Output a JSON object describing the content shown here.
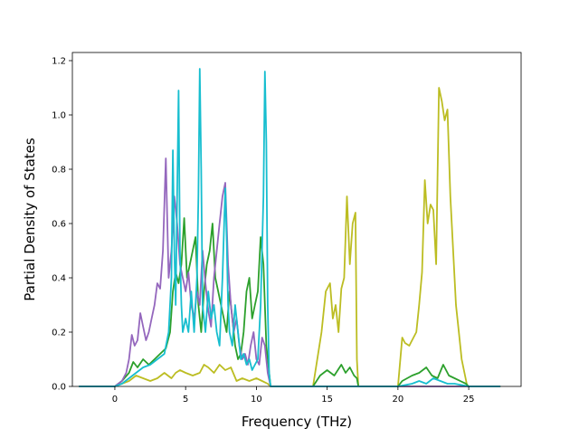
{
  "chart_data": {
    "type": "line",
    "title": "",
    "xlabel": "Frequency (THz)",
    "ylabel": "Partial Density of States",
    "xlim": [
      -3,
      28.7
    ],
    "ylim": [
      0,
      1.23
    ],
    "grid": false,
    "x_ticks": [
      0,
      5,
      10,
      15,
      20,
      25
    ],
    "y_ticks": [
      0.0,
      0.2,
      0.4,
      0.6,
      0.8,
      1.0,
      1.2
    ],
    "colors": {
      "purple": "#9467bd",
      "green": "#2ca02c",
      "olive": "#bcbd22",
      "cyan": "#17becf"
    },
    "series": [
      {
        "color": "#bcbd22",
        "x": [
          -2.5,
          -0.5,
          0,
          1,
          1.5,
          2,
          2.5,
          3,
          3.5,
          4,
          4.3,
          4.6,
          5,
          5.5,
          6,
          6.3,
          6.6,
          7,
          7.4,
          7.8,
          8.2,
          8.6,
          9,
          9.5,
          10,
          10.4,
          10.8,
          11,
          12,
          14,
          14.3,
          14.6,
          14.9,
          15.2,
          15.4,
          15.6,
          15.8,
          16.0,
          16.2,
          16.4,
          16.6,
          16.8,
          17.0,
          17.1,
          17.2,
          18,
          20,
          20.3,
          20.5,
          20.8,
          21.0,
          21.3,
          21.5,
          21.7,
          21.9,
          22.1,
          22.3,
          22.5,
          22.7,
          22.9,
          23.1,
          23.3,
          23.5,
          23.7,
          23.9,
          24.1,
          24.3,
          24.5,
          24.7,
          24.9,
          25.1,
          25.5,
          27.2
        ],
        "y": [
          0,
          0,
          0,
          0.02,
          0.04,
          0.03,
          0.02,
          0.03,
          0.05,
          0.03,
          0.05,
          0.06,
          0.05,
          0.04,
          0.05,
          0.08,
          0.07,
          0.05,
          0.08,
          0.06,
          0.07,
          0.02,
          0.03,
          0.02,
          0.03,
          0.02,
          0.01,
          0,
          0,
          0,
          0.1,
          0.2,
          0.35,
          0.38,
          0.25,
          0.3,
          0.2,
          0.36,
          0.4,
          0.7,
          0.45,
          0.6,
          0.64,
          0.1,
          0,
          0,
          0,
          0.18,
          0.16,
          0.15,
          0.17,
          0.2,
          0.3,
          0.42,
          0.76,
          0.6,
          0.67,
          0.65,
          0.45,
          1.1,
          1.05,
          0.98,
          1.02,
          0.7,
          0.5,
          0.3,
          0.2,
          0.1,
          0.05,
          0,
          0,
          0,
          0
        ]
      },
      {
        "color": "#2ca02c",
        "x": [
          -2.5,
          -0.5,
          0,
          0.5,
          1,
          1.3,
          1.6,
          2,
          2.4,
          2.8,
          3.2,
          3.6,
          3.9,
          4.1,
          4.3,
          4.5,
          4.7,
          4.9,
          5.1,
          5.3,
          5.5,
          5.7,
          5.9,
          6.1,
          6.3,
          6.5,
          6.7,
          6.9,
          7.1,
          7.3,
          7.5,
          7.7,
          7.9,
          8.1,
          8.3,
          8.5,
          8.7,
          8.9,
          9.1,
          9.3,
          9.5,
          9.7,
          9.9,
          10.1,
          10.3,
          10.5,
          10.7,
          10.9,
          11,
          12,
          14,
          14.5,
          15,
          15.5,
          16,
          16.3,
          16.6,
          16.9,
          17.1,
          17.2,
          18,
          20,
          20.3,
          21,
          21.5,
          22,
          22.4,
          22.8,
          23.2,
          23.6,
          24,
          24.4,
          24.8,
          25,
          27.2
        ],
        "y": [
          0,
          0,
          0,
          0.02,
          0.05,
          0.09,
          0.07,
          0.1,
          0.08,
          0.1,
          0.12,
          0.14,
          0.2,
          0.35,
          0.42,
          0.38,
          0.45,
          0.62,
          0.4,
          0.45,
          0.5,
          0.55,
          0.3,
          0.2,
          0.35,
          0.45,
          0.5,
          0.6,
          0.4,
          0.35,
          0.3,
          0.25,
          0.2,
          0.35,
          0.25,
          0.15,
          0.1,
          0.12,
          0.2,
          0.35,
          0.4,
          0.25,
          0.3,
          0.35,
          0.55,
          0.45,
          0.15,
          0.05,
          0,
          0,
          0,
          0.04,
          0.06,
          0.04,
          0.08,
          0.05,
          0.07,
          0.04,
          0.03,
          0,
          0,
          0,
          0.02,
          0.04,
          0.05,
          0.07,
          0.04,
          0.03,
          0.08,
          0.04,
          0.03,
          0.02,
          0.01,
          0,
          0
        ]
      },
      {
        "color": "#9467bd",
        "x": [
          -2.5,
          -0.5,
          0,
          0.5,
          0.8,
          1,
          1.2,
          1.4,
          1.6,
          1.8,
          2.0,
          2.2,
          2.4,
          2.6,
          2.8,
          3.0,
          3.2,
          3.4,
          3.6,
          3.8,
          4.0,
          4.2,
          4.4,
          4.6,
          4.8,
          5.0,
          5.2,
          5.4,
          5.6,
          5.8,
          6.0,
          6.2,
          6.4,
          6.6,
          6.8,
          7.0,
          7.2,
          7.4,
          7.6,
          7.8,
          8.0,
          8.2,
          8.4,
          8.6,
          8.8,
          9.0,
          9.2,
          9.4,
          9.6,
          9.8,
          10.0,
          10.2,
          10.4,
          10.6,
          10.8,
          11,
          14,
          15,
          17,
          20,
          25,
          27.2
        ],
        "y": [
          0,
          0,
          0,
          0.02,
          0.05,
          0.1,
          0.19,
          0.15,
          0.17,
          0.27,
          0.22,
          0.17,
          0.2,
          0.25,
          0.3,
          0.38,
          0.36,
          0.5,
          0.84,
          0.4,
          0.5,
          0.7,
          0.6,
          0.45,
          0.4,
          0.35,
          0.42,
          0.3,
          0.25,
          0.35,
          0.3,
          0.5,
          0.38,
          0.28,
          0.22,
          0.4,
          0.5,
          0.6,
          0.7,
          0.75,
          0.45,
          0.3,
          0.2,
          0.25,
          0.15,
          0.1,
          0.12,
          0.08,
          0.15,
          0.2,
          0.1,
          0.08,
          0.18,
          0.15,
          0.05,
          0,
          0,
          0,
          0,
          0,
          0,
          0
        ]
      },
      {
        "color": "#17becf",
        "x": [
          -2.5,
          -0.5,
          0,
          0.5,
          1,
          1.5,
          2,
          2.5,
          3,
          3.5,
          3.8,
          4.0,
          4.1,
          4.2,
          4.3,
          4.4,
          4.5,
          4.6,
          4.7,
          4.8,
          5.0,
          5.2,
          5.4,
          5.6,
          5.8,
          5.9,
          6.0,
          6.1,
          6.2,
          6.4,
          6.6,
          6.8,
          7.0,
          7.2,
          7.4,
          7.6,
          7.8,
          7.9,
          8.0,
          8.1,
          8.3,
          8.5,
          8.7,
          8.9,
          9.1,
          9.3,
          9.5,
          9.7,
          9.9,
          10.1,
          10.3,
          10.5,
          10.6,
          10.7,
          10.8,
          10.9,
          11,
          12,
          14,
          15,
          16,
          17,
          20,
          21,
          21.5,
          22,
          22.5,
          23,
          23.5,
          24,
          25,
          27.2
        ],
        "y": [
          0,
          0,
          0,
          0.01,
          0.03,
          0.05,
          0.07,
          0.08,
          0.1,
          0.12,
          0.2,
          0.4,
          0.87,
          0.5,
          0.3,
          0.7,
          1.09,
          0.5,
          0.3,
          0.2,
          0.25,
          0.2,
          0.35,
          0.2,
          0.4,
          0.7,
          1.17,
          0.8,
          0.3,
          0.2,
          0.35,
          0.25,
          0.3,
          0.2,
          0.15,
          0.4,
          0.73,
          0.55,
          0.3,
          0.2,
          0.15,
          0.3,
          0.2,
          0.1,
          0.12,
          0.08,
          0.1,
          0.06,
          0.08,
          0.1,
          0.3,
          0.7,
          1.16,
          0.9,
          0.3,
          0.05,
          0,
          0,
          0,
          0,
          0,
          0,
          0,
          0.01,
          0.02,
          0.01,
          0.03,
          0.02,
          0.01,
          0.01,
          0,
          0
        ]
      }
    ]
  }
}
